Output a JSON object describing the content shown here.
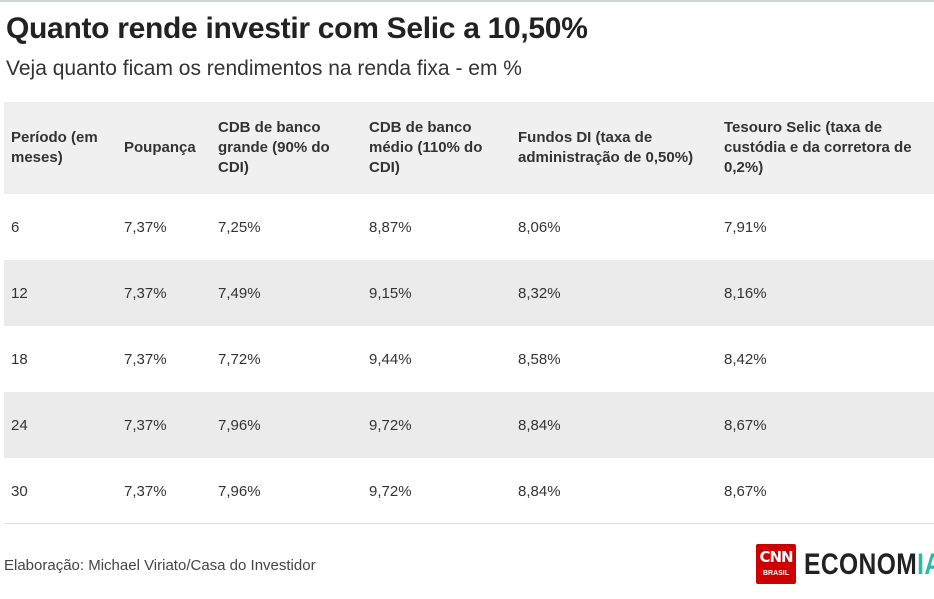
{
  "header": {
    "title": "Quanto rende investir com Selic a 10,50%",
    "subtitle": "Veja quanto ficam os rendimentos na renda fixa - em %"
  },
  "chart_data": {
    "type": "table",
    "columns": [
      "Período (em meses)",
      "Poupança",
      "CDB de banco grande (90% do CDI)",
      "CDB de banco médio (110% do CDI)",
      "Fundos DI (taxa de administração de 0,50%)",
      "Tesouro Selic (taxa de custódia e da corretora de 0,2%)"
    ],
    "rows": [
      [
        "6",
        "7,37%",
        "7,25%",
        "8,87%",
        "8,06%",
        "7,91%"
      ],
      [
        "12",
        "7,37%",
        "7,49%",
        "9,15%",
        "8,32%",
        "8,16%"
      ],
      [
        "18",
        "7,37%",
        "7,72%",
        "9,44%",
        "8,58%",
        "8,42%"
      ],
      [
        "24",
        "7,37%",
        "7,96%",
        "9,72%",
        "8,84%",
        "8,67%"
      ],
      [
        "30",
        "7,37%",
        "7,96%",
        "9,72%",
        "8,84%",
        "8,67%"
      ]
    ]
  },
  "footer": {
    "source": "Elaboração: Michael Viriato/Casa do Investidor",
    "logo_cnn": "CNN",
    "logo_cnn_sub": "BRASIL",
    "logo_text_main": "ECONOM",
    "logo_text_accent": "IA",
    "accent_color": "#2fb7a8",
    "brand_red": "#cc0000"
  }
}
